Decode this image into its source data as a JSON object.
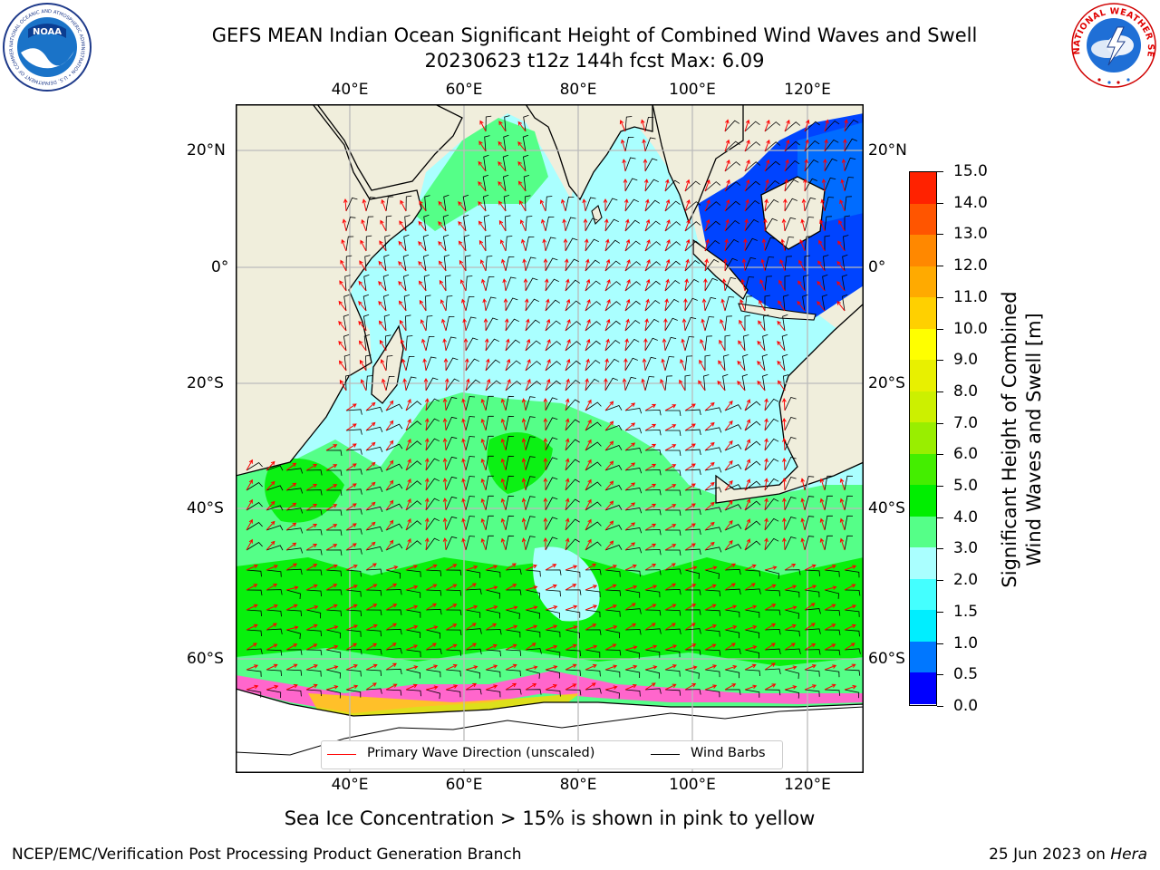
{
  "title": {
    "line1": "GEFS MEAN Indian Ocean Significant Height of Combined Wind Waves and Swell",
    "line2": "20230623 t12z 144h fcst   Max: 6.09"
  },
  "map": {
    "lon_labels": [
      "40°E",
      "60°E",
      "80°E",
      "100°E",
      "120°E"
    ],
    "lat_labels": [
      "20°N",
      "0°",
      "20°S",
      "40°S",
      "60°S"
    ],
    "colors": {
      "land": "#f0eedc",
      "grid": "#bbbbbb",
      "wave_arrow": "#ff0000",
      "wind_barb": "#000000",
      "ice_pink": "#ff66cc",
      "ice_yellow": "#ffd700"
    }
  },
  "legend": {
    "wave_direction": "Primary Wave Direction (unscaled)",
    "wind_barbs": "Wind Barbs"
  },
  "colorbar": {
    "title_line1": "Significant Height of Combined",
    "title_line2": "Wind Waves and Swell [m]",
    "labels": [
      "0.0",
      "0.5",
      "1.0",
      "1.5",
      "2.0",
      "3.0",
      "4.0",
      "5.0",
      "6.0",
      "7.0",
      "8.0",
      "9.0",
      "10.0",
      "11.0",
      "12.0",
      "13.0",
      "14.0",
      "15.0"
    ],
    "colors": [
      "#0000ff",
      "#0077ff",
      "#00eeff",
      "#44ffff",
      "#aaffff",
      "#55ff88",
      "#00ee00",
      "#44ee00",
      "#99ee00",
      "#ccf000",
      "#e8f000",
      "#ffff00",
      "#ffd000",
      "#ffaa00",
      "#ff8800",
      "#ff5500",
      "#ff2200"
    ]
  },
  "footer": {
    "ice_note": "Sea Ice Concentration > 15% is shown in pink to yellow",
    "credit": "NCEP/EMC/Verification Post Processing Product Generation Branch",
    "date_prefix": "25 Jun 2023 on ",
    "date_machine": "Hera"
  },
  "logos": {
    "noaa_text": "NOAA",
    "noaa_ring": "NATIONAL OCEANIC AND ATMOSPHERIC ADMINISTRATION • U.S. DEPARTMENT OF COMMERCE",
    "nws_ring": "NATIONAL WEATHER SERVICE"
  }
}
